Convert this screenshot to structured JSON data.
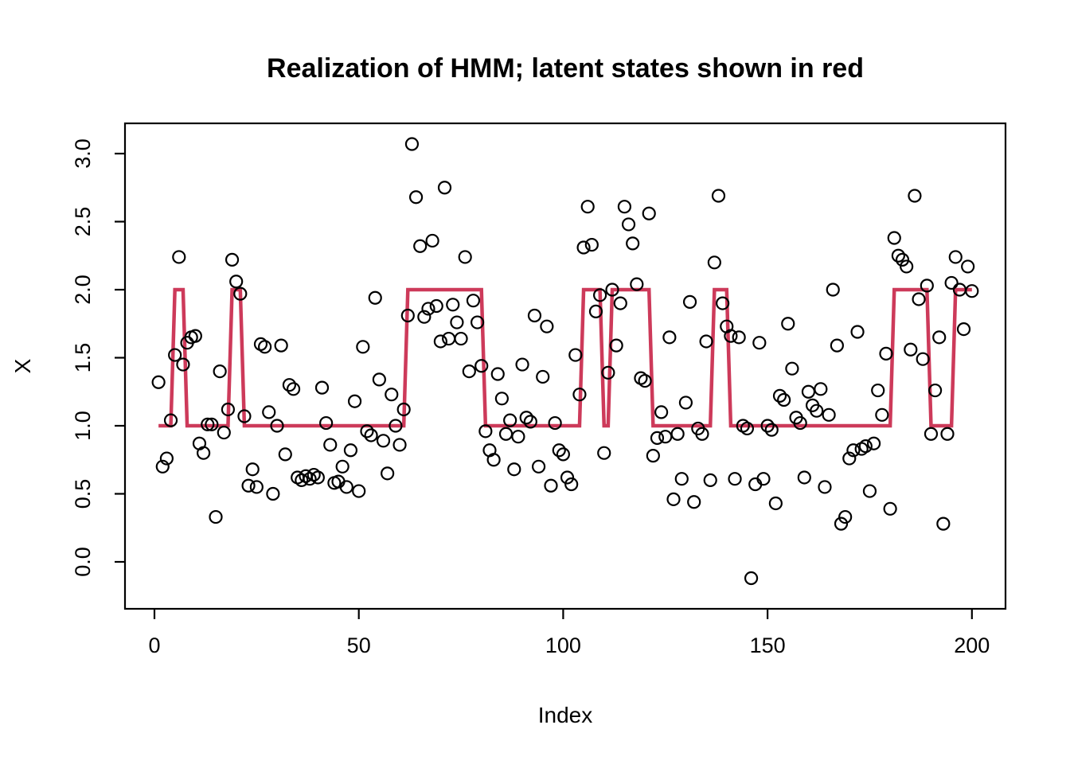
{
  "figure": {
    "title": "Realization of HMM; latent states shown in red",
    "xlabel": "Index",
    "ylabel": "X"
  },
  "colors": {
    "background": "#ffffff",
    "box_and_points": "#000000",
    "latent_line": "#CD3A5A"
  },
  "chart_data": {
    "type": "scatter",
    "title": "Realization of HMM; latent states shown in red",
    "xlabel": "Index",
    "ylabel": "X",
    "grid": false,
    "legend": "none",
    "xlim": [
      0,
      200
    ],
    "ylim": [
      -0.4,
      3.2
    ],
    "x_ticks": [
      0,
      50,
      100,
      150,
      200
    ],
    "y_ticks": [
      "0.0",
      "0.5",
      "1.0",
      "1.5",
      "2.0",
      "2.5",
      "3.0"
    ],
    "x_start": 1,
    "series": [
      {
        "name": "observations",
        "style": "open-circle-scatter",
        "color": "#000000",
        "values": [
          1.32,
          0.7,
          0.76,
          1.04,
          1.52,
          2.24,
          1.45,
          1.61,
          1.65,
          1.66,
          0.87,
          0.8,
          1.01,
          1.01,
          0.33,
          1.4,
          0.95,
          1.12,
          2.22,
          2.06,
          1.97,
          1.07,
          0.56,
          0.68,
          0.55,
          1.6,
          1.58,
          1.1,
          0.5,
          1.0,
          1.59,
          0.79,
          1.3,
          1.27,
          0.62,
          0.6,
          0.63,
          0.61,
          0.64,
          0.62,
          1.28,
          1.02,
          0.86,
          0.58,
          0.59,
          0.7,
          0.55,
          0.82,
          1.18,
          0.52,
          1.58,
          0.96,
          0.93,
          1.94,
          1.34,
          0.89,
          0.65,
          1.23,
          1.0,
          0.86,
          1.12,
          1.81,
          3.07,
          2.68,
          2.32,
          1.8,
          1.86,
          2.36,
          1.88,
          1.62,
          2.75,
          1.64,
          1.89,
          1.76,
          1.64,
          2.24,
          1.4,
          1.92,
          1.76,
          1.44,
          0.96,
          0.82,
          0.75,
          1.38,
          1.2,
          0.94,
          1.04,
          0.68,
          0.92,
          1.45,
          1.06,
          1.03,
          1.81,
          0.7,
          1.36,
          1.73,
          0.56,
          1.02,
          0.82,
          0.79,
          0.62,
          0.57,
          1.52,
          1.23,
          2.31,
          2.61,
          2.33,
          1.84,
          1.96,
          0.8,
          1.39,
          2.0,
          1.59,
          1.9,
          2.61,
          2.48,
          2.34,
          2.04,
          1.35,
          1.33,
          2.56,
          0.78,
          0.91,
          1.1,
          0.92,
          1.65,
          0.46,
          0.94,
          0.61,
          1.17,
          1.91,
          0.44,
          0.98,
          0.94,
          1.62,
          0.6,
          2.2,
          2.69,
          1.9,
          1.73,
          1.66,
          0.61,
          1.65,
          1.0,
          0.98,
          -0.12,
          0.57,
          1.61,
          0.61,
          1.0,
          0.97,
          0.43,
          1.22,
          1.19,
          1.75,
          1.42,
          1.06,
          1.02,
          0.62,
          1.25,
          1.15,
          1.11,
          1.27,
          0.55,
          1.08,
          2.0,
          1.59,
          0.28,
          0.33,
          0.76,
          0.82,
          1.69,
          0.83,
          0.85,
          0.52,
          0.87,
          1.26,
          1.08,
          1.53,
          0.39,
          2.38,
          2.25,
          2.22,
          2.17,
          1.56,
          2.69,
          1.93,
          1.49,
          2.03,
          0.94,
          1.26,
          1.65,
          0.28,
          0.94,
          2.05,
          2.24,
          2.0,
          1.71,
          2.17,
          1.99
        ]
      },
      {
        "name": "latent states (red)",
        "style": "step-line",
        "color": "#CD3A5A",
        "values": [
          1,
          1,
          1,
          1,
          2,
          2,
          2,
          1,
          1,
          1,
          1,
          1,
          1,
          1,
          1,
          1,
          1,
          1,
          2,
          2,
          2,
          1,
          1,
          1,
          1,
          1,
          1,
          1,
          1,
          1,
          1,
          1,
          1,
          1,
          1,
          1,
          1,
          1,
          1,
          1,
          1,
          1,
          1,
          1,
          1,
          1,
          1,
          1,
          1,
          1,
          1,
          1,
          1,
          1,
          1,
          1,
          1,
          1,
          1,
          1,
          1,
          2,
          2,
          2,
          2,
          2,
          2,
          2,
          2,
          2,
          2,
          2,
          2,
          2,
          2,
          2,
          2,
          2,
          2,
          2,
          1,
          1,
          1,
          1,
          1,
          1,
          1,
          1,
          1,
          1,
          1,
          1,
          1,
          1,
          1,
          1,
          1,
          1,
          1,
          1,
          1,
          1,
          1,
          1,
          2,
          2,
          2,
          2,
          2,
          1,
          1,
          2,
          2,
          2,
          2,
          2,
          2,
          2,
          2,
          2,
          2,
          1,
          1,
          1,
          1,
          1,
          1,
          1,
          1,
          1,
          1,
          1,
          1,
          1,
          1,
          1,
          2,
          2,
          2,
          2,
          1,
          1,
          1,
          1,
          1,
          1,
          1,
          1,
          1,
          1,
          1,
          1,
          1,
          1,
          1,
          1,
          1,
          1,
          1,
          1,
          1,
          1,
          1,
          1,
          1,
          1,
          1,
          1,
          1,
          1,
          1,
          1,
          1,
          1,
          1,
          1,
          1,
          1,
          1,
          1,
          2,
          2,
          2,
          2,
          2,
          2,
          2,
          2,
          2,
          1,
          1,
          1,
          1,
          1,
          1,
          2,
          2,
          2,
          2,
          2
        ]
      }
    ]
  }
}
